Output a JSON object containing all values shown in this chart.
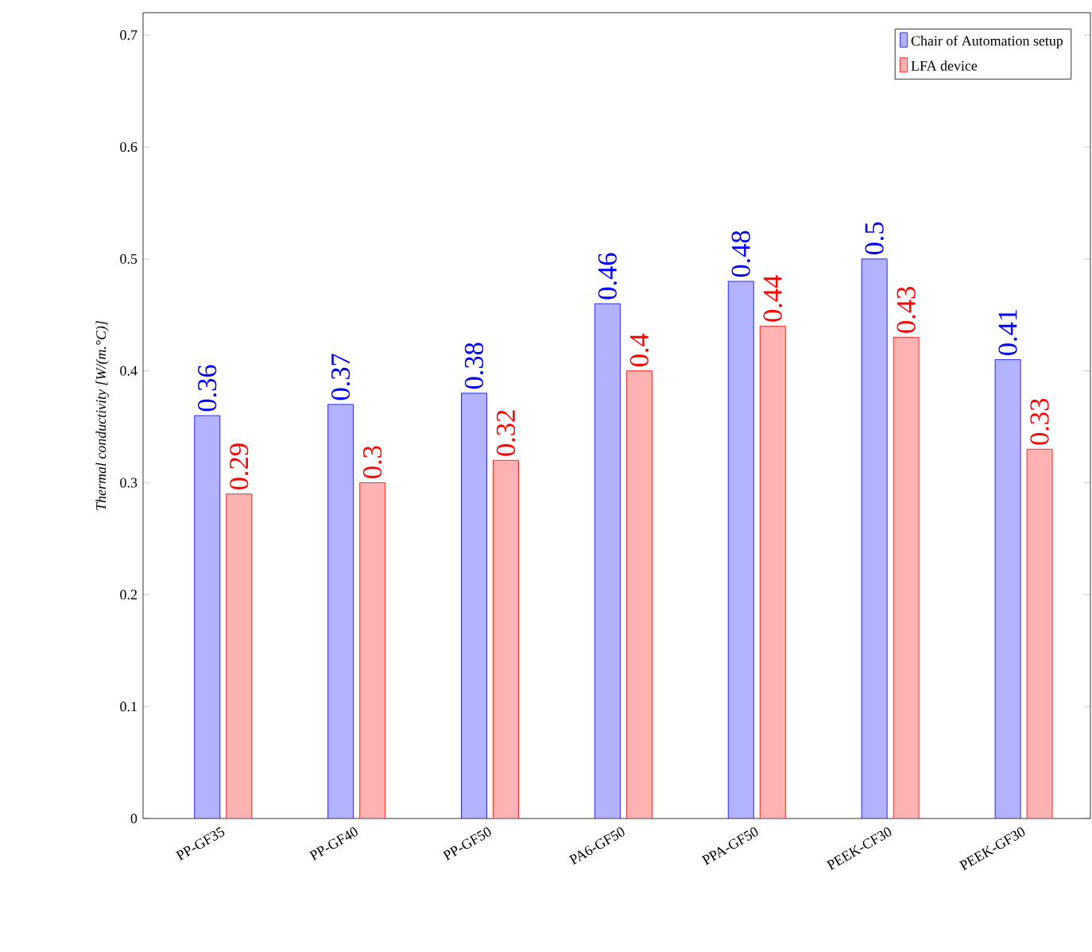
{
  "chart_data": {
    "type": "bar",
    "ylabel": "Thermal conductivity [W/(m.°C)]",
    "categories": [
      "PP-GF35",
      "PP-GF40",
      "PP-GF50",
      "PA6-GF50",
      "PPA-GF50",
      "PEEK-CF30",
      "PEEK-GF30"
    ],
    "series": [
      {
        "name": "Chair of Automation setup",
        "color": "#b2b2ff",
        "values": [
          0.36,
          0.37,
          0.38,
          0.46,
          0.48,
          0.5,
          0.41
        ]
      },
      {
        "name": "LFA device",
        "color": "#ffb2b2",
        "values": [
          0.29,
          0.3,
          0.32,
          0.4,
          0.44,
          0.43,
          0.33
        ]
      }
    ],
    "ylim": [
      0,
      0.72
    ],
    "yticks": [
      0,
      0.1,
      0.2,
      0.3,
      0.4,
      0.5,
      0.6,
      0.7
    ],
    "data_labels": true,
    "legend": "top right",
    "grid": false
  }
}
